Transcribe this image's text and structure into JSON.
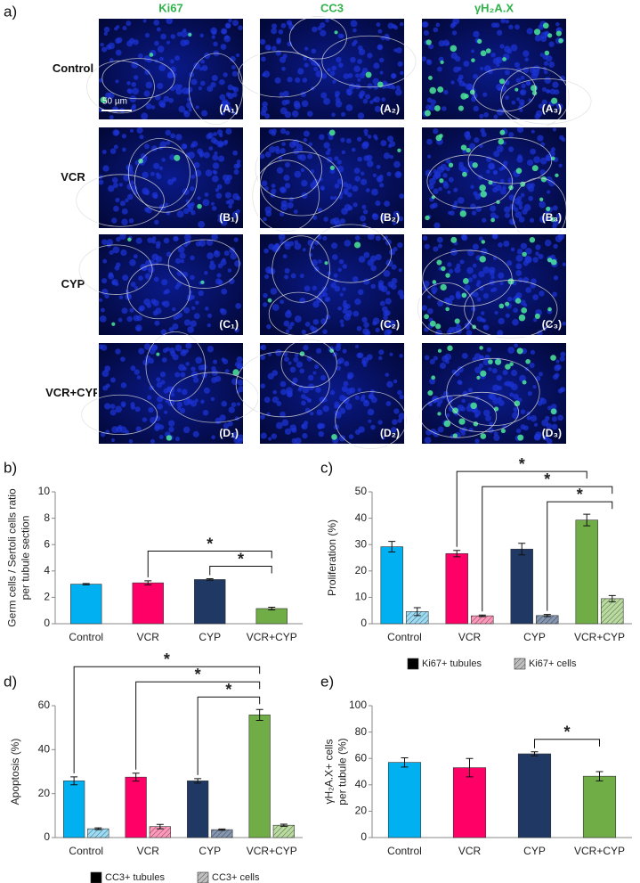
{
  "figure_label": "a)",
  "columns": [
    "Ki67",
    "CC3",
    "γH₂A.X"
  ],
  "rows": [
    "Control",
    "VCR",
    "CYP",
    "VCR+CYP"
  ],
  "panels": [
    [
      "(A₁)",
      "(A₂)",
      "(A₃)"
    ],
    [
      "(B₁)",
      "(B₂)",
      "(B₃)"
    ],
    [
      "(C₁)",
      "(C₂)",
      "(C₃)"
    ],
    [
      "(D₁)",
      "(D₂)",
      "(D₃)"
    ]
  ],
  "scale_bar": "50 µm",
  "chart_data": [
    {
      "type": "bar",
      "panel_label": "b)",
      "ylabel": [
        "Germ cells / Sertoli cells ratio",
        "per tubule section"
      ],
      "categories": [
        "Control",
        "VCR",
        "CYP",
        "VCR+CYP"
      ],
      "series": [
        {
          "colors": [
            "#00b0f0",
            "#ff0066",
            "#1f3864",
            "#70ad47"
          ],
          "values": [
            3.0,
            3.1,
            3.35,
            1.15
          ],
          "errors": [
            0.05,
            0.15,
            0.06,
            0.1
          ]
        }
      ],
      "ylim": [
        0,
        10
      ],
      "yticks": [
        0,
        2,
        4,
        6,
        8,
        10
      ],
      "significance": [
        {
          "from": 2,
          "to": 3,
          "label": "*"
        },
        {
          "from": 1,
          "to": 3,
          "label": "*"
        }
      ]
    },
    {
      "type": "bar",
      "panel_label": "c)",
      "ylabel": [
        "Proliferation (%)"
      ],
      "categories": [
        "Control",
        "VCR",
        "CYP",
        "VCR+CYP"
      ],
      "series": [
        {
          "name": "Ki67+ tubules",
          "colors": [
            "#00b0f0",
            "#ff0066",
            "#1f3864",
            "#70ad47"
          ],
          "legend_color": "#000000",
          "values": [
            29.2,
            26.6,
            28.3,
            39.3
          ],
          "errors": [
            2.0,
            1.2,
            2.2,
            2.2
          ]
        },
        {
          "name": "Ki67+ cells",
          "colors": [
            "#9ddcf5",
            "#ff99bb",
            "#8496b0",
            "#b9dba0"
          ],
          "legend_color": "#bfbfbf",
          "hatch": true,
          "values": [
            4.6,
            3.0,
            3.1,
            9.5
          ],
          "errors": [
            1.5,
            0.3,
            0.4,
            1.2
          ]
        }
      ],
      "ylim": [
        0,
        50
      ],
      "yticks": [
        0,
        10,
        20,
        30,
        40,
        50
      ],
      "significance": [
        {
          "from": 2,
          "from_series": 1,
          "to": 3,
          "to_series": 1,
          "label": "*"
        },
        {
          "from": 1,
          "from_series": 1,
          "to": 3,
          "to_series": 1,
          "label": "*"
        },
        {
          "from": 1,
          "from_series": 0,
          "to": 3,
          "to_series": 0,
          "label": "*"
        }
      ]
    },
    {
      "type": "bar",
      "panel_label": "d)",
      "ylabel": [
        "Apoptosis (%)"
      ],
      "categories": [
        "Control",
        "VCR",
        "CYP",
        "VCR+CYP"
      ],
      "series": [
        {
          "name": "CC3+ tubules",
          "colors": [
            "#00b0f0",
            "#ff0066",
            "#1f3864",
            "#70ad47"
          ],
          "legend_color": "#000000",
          "values": [
            25.8,
            27.5,
            25.8,
            55.8
          ],
          "errors": [
            1.8,
            1.8,
            1.0,
            2.5
          ]
        },
        {
          "name": "CC3+ cells",
          "colors": [
            "#9ddcf5",
            "#ff99bb",
            "#8496b0",
            "#b9dba0"
          ],
          "legend_color": "#bfbfbf",
          "hatch": true,
          "values": [
            4.0,
            5.0,
            3.6,
            5.6
          ],
          "errors": [
            0.4,
            1.0,
            0.3,
            0.5
          ]
        }
      ],
      "ylim": [
        0,
        60
      ],
      "yticks": [
        0,
        20,
        40,
        60
      ],
      "significance": [
        {
          "from": 2,
          "from_series": 0,
          "to": 3,
          "to_series": 0,
          "label": "*"
        },
        {
          "from": 1,
          "from_series": 0,
          "to": 3,
          "to_series": 0,
          "label": "*"
        },
        {
          "from": 0,
          "from_series": 0,
          "to": 3,
          "to_series": 0,
          "label": "*"
        }
      ]
    },
    {
      "type": "bar",
      "panel_label": "e)",
      "ylabel": [
        "γH₂A.X+ cells",
        "per tubule (%)"
      ],
      "categories": [
        "Control",
        "VCR",
        "CYP",
        "VCR+CYP"
      ],
      "series": [
        {
          "colors": [
            "#00b0f0",
            "#ff0066",
            "#1f3864",
            "#70ad47"
          ],
          "values": [
            57,
            53,
            63.5,
            46.5
          ],
          "errors": [
            3.5,
            7,
            1.5,
            3.5
          ]
        }
      ],
      "ylim": [
        0,
        100
      ],
      "yticks": [
        0,
        20,
        40,
        60,
        80,
        100
      ],
      "significance": [
        {
          "from": 2,
          "to": 3,
          "label": "*"
        }
      ]
    }
  ]
}
